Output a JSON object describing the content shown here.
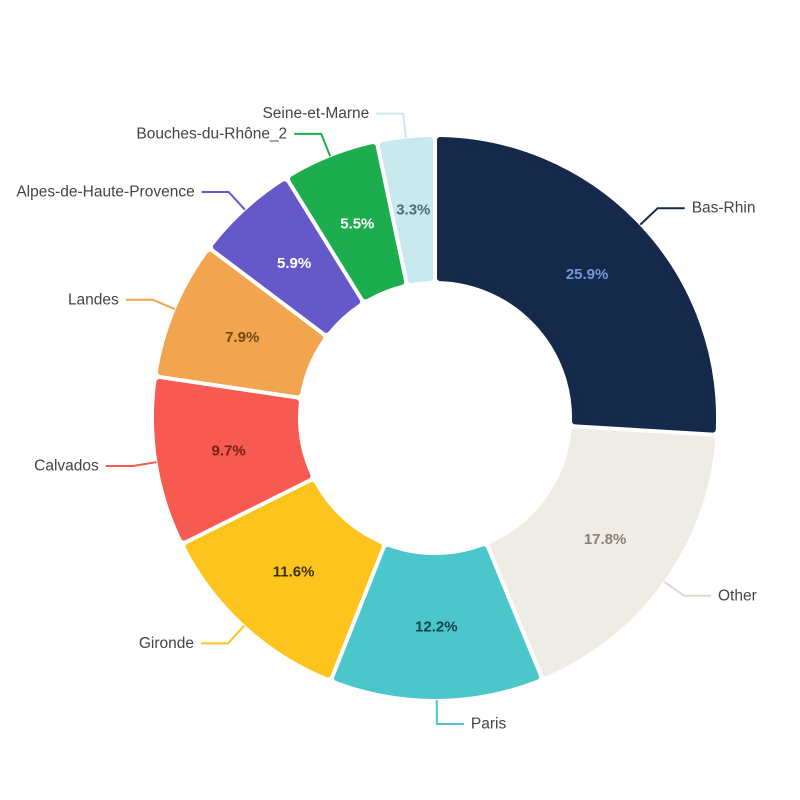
{
  "page": {
    "background_color": "#ffffff"
  },
  "chart_data": {
    "type": "pie",
    "subtype": "donut",
    "title": "",
    "hole_ratio": 0.5,
    "value_unit": "%",
    "legend": "none",
    "label_placement": "outside-with-leader-lines",
    "value_placement": "inside",
    "label_text_color": "#444444",
    "categories": [
      "Bas-Rhin",
      "Other",
      "Paris",
      "Gironde",
      "Calvados",
      "Landes",
      "Alpes-de-Haute-Provence",
      "Bouches-du-Rhône_2",
      "Seine-et-Marne"
    ],
    "values": [
      25.9,
      17.8,
      12.2,
      11.6,
      9.7,
      7.9,
      5.9,
      5.5,
      3.3
    ],
    "slices": [
      {
        "label": "Bas-Rhin",
        "value": 25.9,
        "display": "25.9%",
        "color": "#15294b",
        "value_text_color": "#7496d8"
      },
      {
        "label": "Other",
        "value": 17.8,
        "display": "17.8%",
        "color": "#efece6",
        "value_text_color": "#8a8172",
        "line_color": "#ddd8cf"
      },
      {
        "label": "Paris",
        "value": 12.2,
        "display": "12.2%",
        "color": "#4bc7cc",
        "value_text_color": "#0e4549"
      },
      {
        "label": "Gironde",
        "value": 11.6,
        "display": "11.6%",
        "color": "#fcc41c",
        "value_text_color": "#3f3107"
      },
      {
        "label": "Calvados",
        "value": 9.7,
        "display": "9.7%",
        "color": "#f75a50",
        "value_text_color": "#74201b"
      },
      {
        "label": "Landes",
        "value": 7.9,
        "display": "7.9%",
        "color": "#f2a54f",
        "value_text_color": "#6e4a13"
      },
      {
        "label": "Alpes-de-Haute-Provence",
        "value": 5.9,
        "display": "5.9%",
        "color": "#6558c8",
        "value_text_color": "#ffffff"
      },
      {
        "label": "Bouches-du-Rhône_2",
        "value": 5.5,
        "display": "5.5%",
        "color": "#1cad4e",
        "value_text_color": "#ffffff"
      },
      {
        "label": "Seine-et-Marne",
        "value": 3.3,
        "display": "3.3%",
        "color": "#c8e9ed",
        "value_text_color": "#4b6d78"
      }
    ]
  }
}
